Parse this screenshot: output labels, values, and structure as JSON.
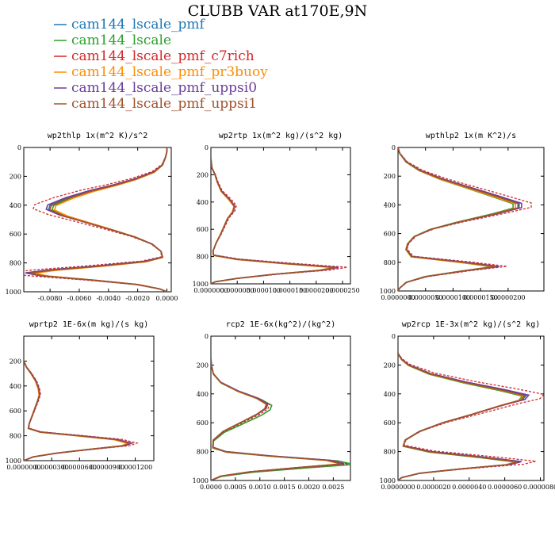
{
  "figure": {
    "title": "CLUBB VAR at170E,9N"
  },
  "legend": [
    {
      "label": "cam144_lscale_pmf",
      "color": "#1f77b4"
    },
    {
      "label": "cam144_lscale",
      "color": "#2ca02c"
    },
    {
      "label": "cam144_lscale_pmf_c7rich",
      "color": "#d62728"
    },
    {
      "label": "cam144_lscale_pmf_pr3buoy",
      "color": "#ff8c00"
    },
    {
      "label": "cam144_lscale_pmf_uppsi0",
      "color": "#6a3d9a"
    },
    {
      "label": "cam144_lscale_pmf_uppsi1",
      "color": "#a0522d"
    }
  ],
  "chart_data": [
    {
      "type": "line",
      "title": "wp2thlp  1x(m^2 K)/s^2",
      "xlim": [
        -0.0098,
        0.0003
      ],
      "ylim": [
        1000,
        0
      ],
      "xticks": [
        -0.008,
        -0.006,
        -0.004,
        -0.002,
        0.0
      ],
      "xtick_labels": [
        "-0.0080",
        "-0.0060",
        "-0.0040",
        "-0.0020",
        "0.0000"
      ],
      "yticks": [
        0,
        200,
        400,
        600,
        800,
        1000
      ],
      "profile": [
        [
          0,
          0
        ],
        [
          30,
          0
        ],
        [
          70,
          -0.0001
        ],
        [
          120,
          -0.0003
        ],
        [
          170,
          -0.0009
        ],
        [
          220,
          -0.0022
        ],
        [
          260,
          -0.0036
        ],
        [
          300,
          -0.0052
        ],
        [
          350,
          -0.0068
        ],
        [
          400,
          -0.008
        ],
        [
          430,
          -0.0081
        ],
        [
          470,
          -0.0072
        ],
        [
          520,
          -0.0055
        ],
        [
          570,
          -0.0038
        ],
        [
          620,
          -0.0022
        ],
        [
          670,
          -0.001
        ],
        [
          720,
          -0.0004
        ],
        [
          760,
          -0.0003
        ],
        [
          790,
          -0.0015
        ],
        [
          820,
          -0.0045
        ],
        [
          850,
          -0.008
        ],
        [
          870,
          -0.0095
        ],
        [
          890,
          -0.0085
        ],
        [
          920,
          -0.005
        ],
        [
          950,
          -0.002
        ],
        [
          980,
          -0.0005
        ],
        [
          1000,
          0
        ]
      ],
      "series": [
        {
          "name": "cam144_lscale_pmf",
          "color": "#1f77b4",
          "scale": 1.0,
          "dp": 0,
          "dash": false
        },
        {
          "name": "cam144_lscale",
          "color": "#2ca02c",
          "scale": 0.97,
          "dp": 3,
          "dash": false
        },
        {
          "name": "cam144_lscale_pmf_c7rich",
          "color": "#d62728",
          "scale": 1.13,
          "dp": -6,
          "dash": true
        },
        {
          "name": "cam144_lscale_pmf_pr3buoy",
          "color": "#ff8c00",
          "scale": 0.95,
          "dp": 4,
          "dash": false
        },
        {
          "name": "cam144_lscale_pmf_uppsi0",
          "color": "#6a3d9a",
          "scale": 1.02,
          "dp": -2,
          "dash": false
        },
        {
          "name": "cam144_lscale_pmf_uppsi1",
          "color": "#a0522d",
          "scale": 0.99,
          "dp": 2,
          "dash": false
        }
      ]
    },
    {
      "type": "line",
      "title": "wp2rtp  1x(m^2 kg)/(s^2 kg)",
      "xlim": [
        0.0,
        2.65e-05
      ],
      "ylim": [
        1000,
        0
      ],
      "xticks": [
        0.0,
        5e-06,
        1e-05,
        1.5e-05,
        2e-05,
        2.5e-05
      ],
      "xtick_labels": [
        "0.0000000",
        "0.0000050",
        "0.0000100",
        "0.0000150",
        "0.0000200",
        "0.0000250"
      ],
      "yticks": [
        0,
        200,
        400,
        600,
        800,
        1000
      ],
      "profile": [
        [
          80,
          0
        ],
        [
          150,
          2e-07
        ],
        [
          200,
          8e-07
        ],
        [
          250,
          1.2e-06
        ],
        [
          320,
          2e-06
        ],
        [
          380,
          3.5e-06
        ],
        [
          430,
          4.5e-06
        ],
        [
          470,
          4.2e-06
        ],
        [
          520,
          3.2e-06
        ],
        [
          580,
          2.5e-06
        ],
        [
          640,
          1.8e-06
        ],
        [
          700,
          1e-06
        ],
        [
          760,
          4e-07
        ],
        [
          790,
          5e-07
        ],
        [
          820,
          5e-06
        ],
        [
          850,
          1.4e-05
        ],
        [
          880,
          2.4e-05
        ],
        [
          900,
          2.1e-05
        ],
        [
          930,
          1.2e-05
        ],
        [
          960,
          5e-06
        ],
        [
          985,
          8e-07
        ],
        [
          1000,
          0
        ]
      ],
      "series": [
        {
          "name": "cam144_lscale_pmf",
          "color": "#1f77b4",
          "scale": 1.0,
          "dp": 0,
          "dash": false
        },
        {
          "name": "cam144_lscale",
          "color": "#2ca02c",
          "scale": 0.98,
          "dp": 2,
          "dash": false
        },
        {
          "name": "cam144_lscale_pmf_c7rich",
          "color": "#d62728",
          "scale": 1.08,
          "dp": -4,
          "dash": true
        },
        {
          "name": "cam144_lscale_pmf_pr3buoy",
          "color": "#ff8c00",
          "scale": 0.97,
          "dp": 3,
          "dash": false
        },
        {
          "name": "cam144_lscale_pmf_uppsi0",
          "color": "#6a3d9a",
          "scale": 1.01,
          "dp": -1,
          "dash": false
        },
        {
          "name": "cam144_lscale_pmf_uppsi1",
          "color": "#a0522d",
          "scale": 0.99,
          "dp": 1,
          "dash": false
        }
      ]
    },
    {
      "type": "line",
      "title": "wpthlp2  1x(m K^2)/s",
      "xlim": [
        0.0,
        2.65e-05
      ],
      "ylim": [
        1000,
        0
      ],
      "xticks": [
        0.0,
        5e-06,
        1e-05,
        1.5e-05,
        2e-05
      ],
      "xtick_labels": [
        "0.0000000",
        "0.0000050",
        "0.0000100",
        "0.0000150",
        "0.0000200"
      ],
      "yticks": [
        0,
        200,
        400,
        600,
        800,
        1000
      ],
      "profile": [
        [
          0,
          0
        ],
        [
          40,
          3e-07
        ],
        [
          100,
          1.5e-06
        ],
        [
          160,
          4e-06
        ],
        [
          220,
          8e-06
        ],
        [
          280,
          1.3e-05
        ],
        [
          340,
          1.8e-05
        ],
        [
          390,
          2.2e-05
        ],
        [
          420,
          2.2e-05
        ],
        [
          460,
          1.8e-05
        ],
        [
          520,
          1.1e-05
        ],
        [
          570,
          6e-06
        ],
        [
          620,
          3e-06
        ],
        [
          670,
          1.8e-06
        ],
        [
          710,
          1.5e-06
        ],
        [
          760,
          2.5e-06
        ],
        [
          800,
          1.2e-05
        ],
        [
          830,
          1.8e-05
        ],
        [
          860,
          1.2e-05
        ],
        [
          900,
          5e-06
        ],
        [
          940,
          1.5e-06
        ],
        [
          980,
          3e-07
        ],
        [
          1000,
          0
        ]
      ],
      "series": [
        {
          "name": "cam144_lscale_pmf",
          "color": "#1f77b4",
          "scale": 1.0,
          "dp": 0,
          "dash": false
        },
        {
          "name": "cam144_lscale",
          "color": "#2ca02c",
          "scale": 0.95,
          "dp": 3,
          "dash": false
        },
        {
          "name": "cam144_lscale_pmf_c7rich",
          "color": "#d62728",
          "scale": 1.1,
          "dp": -4,
          "dash": true
        },
        {
          "name": "cam144_lscale_pmf_pr3buoy",
          "color": "#ff8c00",
          "scale": 0.97,
          "dp": 4,
          "dash": false
        },
        {
          "name": "cam144_lscale_pmf_uppsi0",
          "color": "#6a3d9a",
          "scale": 1.02,
          "dp": -1,
          "dash": false
        },
        {
          "name": "cam144_lscale_pmf_uppsi1",
          "color": "#a0522d",
          "scale": 0.99,
          "dp": 1,
          "dash": false
        }
      ]
    },
    {
      "type": "line",
      "title": "wprtp2  1E-6x(m kg)/(s kg)",
      "xlim": [
        0.0,
        0.00014
      ],
      "ylim": [
        1000,
        0
      ],
      "xticks": [
        0.0,
        3e-05,
        6e-05,
        9e-05,
        0.00012
      ],
      "xtick_labels": [
        "0.0000000",
        "0.0000300",
        "0.0000600",
        "0.0000900",
        "0.0001200"
      ],
      "yticks": [
        200,
        400,
        600,
        800,
        1000
      ],
      "profile": [
        [
          200,
          0
        ],
        [
          250,
          3e-06
        ],
        [
          300,
          8e-06
        ],
        [
          360,
          1.3e-05
        ],
        [
          420,
          1.6e-05
        ],
        [
          470,
          1.7e-05
        ],
        [
          520,
          1.5e-05
        ],
        [
          580,
          1.2e-05
        ],
        [
          640,
          9e-06
        ],
        [
          700,
          6e-06
        ],
        [
          740,
          5e-06
        ],
        [
          770,
          1.8e-05
        ],
        [
          800,
          6e-05
        ],
        [
          830,
          0.0001
        ],
        [
          860,
          0.000115
        ],
        [
          880,
          0.000108
        ],
        [
          910,
          7e-05
        ],
        [
          940,
          3.5e-05
        ],
        [
          970,
          1e-05
        ],
        [
          1000,
          0
        ]
      ],
      "series": [
        {
          "name": "cam144_lscale_pmf",
          "color": "#1f77b4",
          "scale": 1.0,
          "dp": 0,
          "dash": false
        },
        {
          "name": "cam144_lscale",
          "color": "#2ca02c",
          "scale": 0.98,
          "dp": 2,
          "dash": false
        },
        {
          "name": "cam144_lscale_pmf_c7rich",
          "color": "#d62728",
          "scale": 1.06,
          "dp": -2,
          "dash": true
        },
        {
          "name": "cam144_lscale_pmf_pr3buoy",
          "color": "#ff8c00",
          "scale": 0.97,
          "dp": 3,
          "dash": false
        },
        {
          "name": "cam144_lscale_pmf_uppsi0",
          "color": "#6a3d9a",
          "scale": 1.01,
          "dp": -1,
          "dash": false
        },
        {
          "name": "cam144_lscale_pmf_uppsi1",
          "color": "#a0522d",
          "scale": 0.99,
          "dp": 1,
          "dash": false
        }
      ]
    },
    {
      "type": "line",
      "title": "rcp2  1E-6x(kg^2)/(kg^2)",
      "xlim": [
        0.0,
        0.00285
      ],
      "ylim": [
        1000,
        0
      ],
      "xticks": [
        0.0,
        0.0005,
        0.001,
        0.0015,
        0.002,
        0.0025
      ],
      "xtick_labels": [
        "0.0000",
        "0.0005",
        "0.0010",
        "0.0015",
        "0.0020",
        "0.0025"
      ],
      "yticks": [
        0,
        200,
        400,
        600,
        800,
        1000
      ],
      "profile": [
        [
          150,
          0
        ],
        [
          200,
          1e-05
        ],
        [
          260,
          5e-05
        ],
        [
          320,
          0.0002
        ],
        [
          380,
          0.00055
        ],
        [
          430,
          0.00095
        ],
        [
          470,
          0.00115
        ],
        [
          500,
          0.00112
        ],
        [
          540,
          0.00095
        ],
        [
          600,
          0.0006
        ],
        [
          660,
          0.00025
        ],
        [
          720,
          5e-05
        ],
        [
          770,
          4e-05
        ],
        [
          800,
          0.0003
        ],
        [
          830,
          0.0012
        ],
        [
          860,
          0.0024
        ],
        [
          885,
          0.0027
        ],
        [
          910,
          0.0018
        ],
        [
          940,
          0.0008
        ],
        [
          970,
          0.0002
        ],
        [
          1000,
          0
        ]
      ],
      "series": [
        {
          "name": "cam144_lscale_pmf",
          "color": "#1f77b4",
          "scale": 1.0,
          "dp": 0,
          "dash": false
        },
        {
          "name": "cam144_lscale",
          "color": "#2ca02c",
          "scale": 1.08,
          "dp": 10,
          "dash": false
        },
        {
          "name": "cam144_lscale_pmf_c7rich",
          "color": "#d62728",
          "scale": 1.04,
          "dp": 4,
          "dash": true
        },
        {
          "name": "cam144_lscale_pmf_pr3buoy",
          "color": "#ff8c00",
          "scale": 0.98,
          "dp": 2,
          "dash": false
        },
        {
          "name": "cam144_lscale_pmf_uppsi0",
          "color": "#6a3d9a",
          "scale": 1.01,
          "dp": -1,
          "dash": false
        },
        {
          "name": "cam144_lscale_pmf_uppsi1",
          "color": "#a0522d",
          "scale": 0.99,
          "dp": 1,
          "dash": false
        }
      ]
    },
    {
      "type": "line",
      "title": "wp2rcp  1E-3x(m^2 kg)/(s^2 kg)",
      "xlim": [
        0.0,
        8.2e-06
      ],
      "ylim": [
        1000,
        0
      ],
      "xticks": [
        0.0,
        2e-06,
        4e-06,
        6e-06,
        8e-06
      ],
      "xtick_labels": [
        "0.0000000",
        "0.0000020",
        "0.0000040",
        "0.0000060",
        "0.0000080"
      ],
      "yticks": [
        0,
        200,
        400,
        600,
        800,
        1000
      ],
      "profile": [
        [
          120,
          0
        ],
        [
          160,
          2e-07
        ],
        [
          200,
          6e-07
        ],
        [
          260,
          1.8e-06
        ],
        [
          320,
          3.8e-06
        ],
        [
          370,
          5.8e-06
        ],
        [
          410,
          7.2e-06
        ],
        [
          440,
          7e-06
        ],
        [
          480,
          5.8e-06
        ],
        [
          540,
          4.2e-06
        ],
        [
          600,
          2.5e-06
        ],
        [
          660,
          1.2e-06
        ],
        [
          720,
          4e-07
        ],
        [
          760,
          3e-07
        ],
        [
          800,
          1.8e-06
        ],
        [
          840,
          4.8e-06
        ],
        [
          870,
          6.8e-06
        ],
        [
          890,
          6.2e-06
        ],
        [
          920,
          3.5e-06
        ],
        [
          950,
          1.2e-06
        ],
        [
          980,
          2e-07
        ],
        [
          1000,
          0
        ]
      ],
      "series": [
        {
          "name": "cam144_lscale_pmf",
          "color": "#1f77b4",
          "scale": 1.0,
          "dp": 0,
          "dash": false
        },
        {
          "name": "cam144_lscale",
          "color": "#2ca02c",
          "scale": 0.97,
          "dp": 6,
          "dash": false
        },
        {
          "name": "cam144_lscale_pmf_c7rich",
          "color": "#d62728",
          "scale": 1.14,
          "dp": -8,
          "dash": true
        },
        {
          "name": "cam144_lscale_pmf_pr3buoy",
          "color": "#ff8c00",
          "scale": 0.98,
          "dp": 3,
          "dash": false
        },
        {
          "name": "cam144_lscale_pmf_uppsi0",
          "color": "#6a3d9a",
          "scale": 1.02,
          "dp": -2,
          "dash": false
        },
        {
          "name": "cam144_lscale_pmf_uppsi1",
          "color": "#a0522d",
          "scale": 0.99,
          "dp": 2,
          "dash": false
        }
      ]
    }
  ]
}
